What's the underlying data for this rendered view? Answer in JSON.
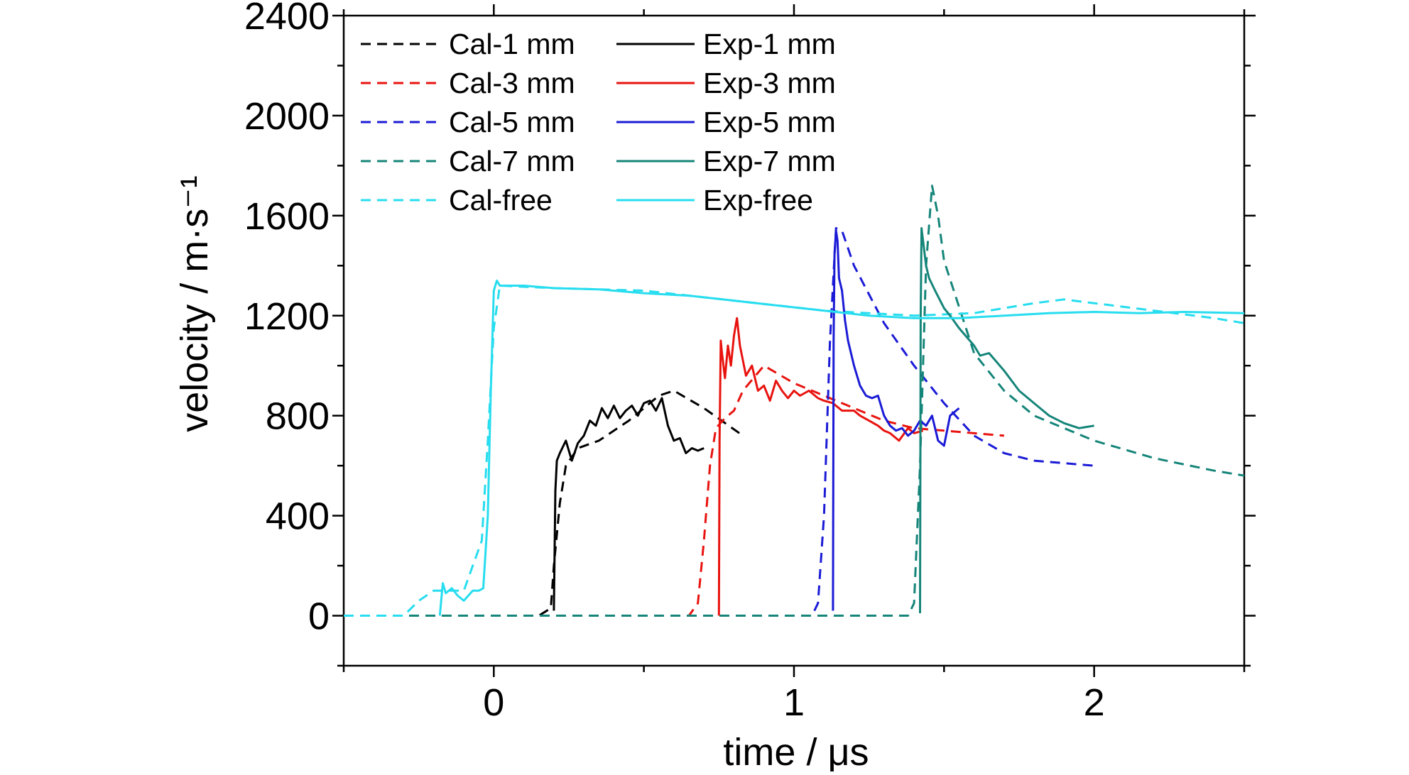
{
  "chart_data": {
    "type": "line",
    "xlabel": "time / μs",
    "ylabel": "velocity / m·s⁻¹",
    "xlim": [
      -0.5,
      2.5
    ],
    "ylim": [
      -200,
      2400
    ],
    "x_ticks": [
      "0",
      "1",
      "2"
    ],
    "y_ticks": [
      "0",
      "400",
      "800",
      "1200",
      "1600",
      "2000",
      "2400"
    ],
    "grid": false,
    "legend_position": "top-left",
    "legend": [
      "Cal-1 mm",
      "Cal-3 mm",
      "Cal-5 mm",
      "Cal-7 mm",
      "Cal-free",
      "Exp-1 mm",
      "Exp-3 mm",
      "Exp-5 mm",
      "Exp-7 mm",
      "Exp-free"
    ],
    "series": [
      {
        "name": "Cal-1 mm",
        "style": "dashed",
        "color": "#000000",
        "x": [
          -0.5,
          0.15,
          0.19,
          0.2,
          0.22,
          0.24,
          0.28,
          0.35,
          0.45,
          0.55,
          0.6,
          0.7,
          0.83
        ],
        "y": [
          0,
          0,
          30,
          200,
          450,
          600,
          670,
          700,
          780,
          880,
          900,
          830,
          720
        ]
      },
      {
        "name": "Cal-3 mm",
        "style": "dashed",
        "color": "#e8130f",
        "x": [
          -0.5,
          0.65,
          0.68,
          0.7,
          0.72,
          0.74,
          0.77,
          0.8,
          0.83,
          0.9,
          1.0,
          1.1,
          1.2,
          1.3,
          1.4,
          1.5,
          1.6,
          1.7
        ],
        "y": [
          0,
          0,
          50,
          300,
          600,
          750,
          790,
          820,
          900,
          1000,
          930,
          880,
          830,
          780,
          750,
          740,
          730,
          720
        ]
      },
      {
        "name": "Cal-5 mm",
        "style": "dashed",
        "color": "#1b1bd6",
        "x": [
          -0.5,
          1.06,
          1.08,
          1.1,
          1.12,
          1.14,
          1.16,
          1.2,
          1.3,
          1.4,
          1.5,
          1.6,
          1.7,
          1.8,
          2.0
        ],
        "y": [
          0,
          0,
          50,
          400,
          1100,
          1550,
          1540,
          1400,
          1170,
          1000,
          850,
          720,
          650,
          620,
          600
        ]
      },
      {
        "name": "Cal-7 mm",
        "style": "dashed",
        "color": "#158579",
        "x": [
          -0.5,
          1.38,
          1.4,
          1.42,
          1.44,
          1.46,
          1.48,
          1.5,
          1.6,
          1.7,
          1.8,
          2.0,
          2.2,
          2.4,
          2.5
        ],
        "y": [
          0,
          0,
          50,
          600,
          1400,
          1720,
          1600,
          1420,
          1050,
          900,
          800,
          700,
          630,
          580,
          560
        ]
      },
      {
        "name": "Cal-free",
        "style": "dashed",
        "color": "#27ddef",
        "x": [
          -0.5,
          -0.3,
          -0.25,
          -0.2,
          -0.1,
          -0.04,
          -0.02,
          0.0,
          0.02,
          0.2,
          0.5,
          0.8,
          1.1,
          1.4,
          1.6,
          1.8,
          1.9,
          2.0,
          2.2,
          2.4,
          2.5
        ],
        "y": [
          0,
          0,
          60,
          100,
          100,
          300,
          700,
          1150,
          1320,
          1310,
          1300,
          1260,
          1220,
          1200,
          1210,
          1250,
          1265,
          1250,
          1220,
          1190,
          1170
        ]
      },
      {
        "name": "Exp-1 mm",
        "style": "solid",
        "color": "#000000",
        "x": [
          0.2,
          0.205,
          0.21,
          0.22,
          0.24,
          0.26,
          0.28,
          0.3,
          0.32,
          0.34,
          0.36,
          0.38,
          0.4,
          0.42,
          0.44,
          0.46,
          0.48,
          0.5,
          0.52,
          0.54,
          0.56,
          0.58,
          0.6,
          0.62,
          0.64,
          0.66,
          0.68,
          0.7
        ],
        "y": [
          20,
          500,
          620,
          650,
          700,
          620,
          690,
          720,
          780,
          760,
          830,
          790,
          840,
          790,
          820,
          840,
          800,
          850,
          860,
          820,
          870,
          760,
          700,
          710,
          650,
          670,
          660,
          670
        ]
      },
      {
        "name": "Exp-3 mm",
        "style": "solid",
        "color": "#e8130f",
        "x": [
          0.75,
          0.752,
          0.756,
          0.76,
          0.77,
          0.78,
          0.79,
          0.8,
          0.81,
          0.82,
          0.84,
          0.86,
          0.88,
          0.9,
          0.92,
          0.94,
          0.96,
          0.98,
          1.0,
          1.02,
          1.05,
          1.08,
          1.1,
          1.13,
          1.16,
          1.2,
          1.22,
          1.25,
          1.28,
          1.3,
          1.32,
          1.35,
          1.38,
          1.4,
          1.43
        ],
        "y": [
          0,
          700,
          1100,
          1050,
          950,
          1080,
          1000,
          1120,
          1190,
          1080,
          960,
          1000,
          900,
          920,
          860,
          940,
          900,
          870,
          900,
          880,
          900,
          870,
          860,
          850,
          820,
          820,
          800,
          780,
          760,
          740,
          730,
          700,
          750,
          730,
          740
        ]
      },
      {
        "name": "Exp-5 mm",
        "style": "solid",
        "color": "#1b1bd6",
        "x": [
          1.13,
          1.132,
          1.135,
          1.14,
          1.145,
          1.15,
          1.16,
          1.17,
          1.18,
          1.2,
          1.22,
          1.24,
          1.26,
          1.28,
          1.3,
          1.32,
          1.34,
          1.36,
          1.38,
          1.4,
          1.42,
          1.44,
          1.46,
          1.48,
          1.5,
          1.52,
          1.55
        ],
        "y": [
          20,
          1100,
          1450,
          1540,
          1500,
          1350,
          1300,
          1180,
          1100,
          1000,
          920,
          880,
          870,
          880,
          800,
          760,
          740,
          750,
          720,
          740,
          780,
          760,
          800,
          700,
          680,
          800,
          830
        ]
      },
      {
        "name": "Exp-7 mm",
        "style": "solid",
        "color": "#158579",
        "x": [
          1.42,
          1.422,
          1.425,
          1.43,
          1.44,
          1.45,
          1.47,
          1.5,
          1.52,
          1.55,
          1.6,
          1.62,
          1.65,
          1.7,
          1.75,
          1.8,
          1.85,
          1.9,
          1.95,
          2.0
        ],
        "y": [
          10,
          1200,
          1550,
          1500,
          1400,
          1350,
          1300,
          1230,
          1200,
          1150,
          1080,
          1040,
          1050,
          980,
          900,
          850,
          800,
          770,
          750,
          760
        ]
      },
      {
        "name": "Exp-free",
        "style": "solid",
        "color": "#27ddef",
        "x": [
          -0.18,
          -0.17,
          -0.16,
          -0.14,
          -0.12,
          -0.1,
          -0.07,
          -0.05,
          -0.035,
          -0.02,
          -0.01,
          0.0,
          0.01,
          0.02,
          0.1,
          0.2,
          0.35,
          0.5,
          0.65,
          0.8,
          0.95,
          1.1,
          1.25,
          1.4,
          1.55,
          1.7,
          1.85,
          2.0,
          2.15,
          2.3,
          2.5
        ],
        "y": [
          0,
          130,
          90,
          110,
          80,
          60,
          100,
          100,
          110,
          400,
          900,
          1300,
          1340,
          1320,
          1320,
          1310,
          1305,
          1290,
          1280,
          1260,
          1240,
          1220,
          1200,
          1190,
          1190,
          1200,
          1210,
          1215,
          1210,
          1215,
          1210
        ]
      }
    ]
  }
}
